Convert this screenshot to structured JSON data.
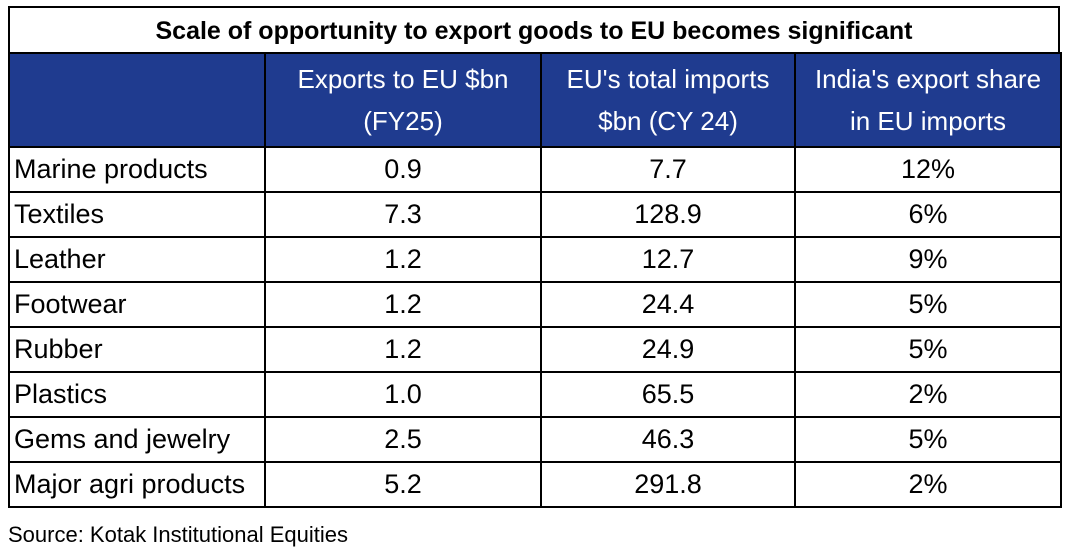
{
  "chart_data": {
    "type": "table",
    "title": "Scale of opportunity to export goods to EU becomes significant",
    "columns": [
      {
        "line1": "",
        "line2": ""
      },
      {
        "line1": "Exports to EU $bn",
        "line2": "(FY25)"
      },
      {
        "line1": "EU's total imports",
        "line2": "$bn (CY 24)"
      },
      {
        "line1": "India's export share",
        "line2": "in EU imports"
      }
    ],
    "rows": [
      {
        "category": "Marine products",
        "exports_fy25": "0.9",
        "eu_imports_cy24": "7.7",
        "india_share": "12%"
      },
      {
        "category": "Textiles",
        "exports_fy25": "7.3",
        "eu_imports_cy24": "128.9",
        "india_share": "6%"
      },
      {
        "category": "Leather",
        "exports_fy25": "1.2",
        "eu_imports_cy24": "12.7",
        "india_share": "9%"
      },
      {
        "category": "Footwear",
        "exports_fy25": "1.2",
        "eu_imports_cy24": "24.4",
        "india_share": "5%"
      },
      {
        "category": "Rubber",
        "exports_fy25": "1.2",
        "eu_imports_cy24": "24.9",
        "india_share": "5%"
      },
      {
        "category": "Plastics",
        "exports_fy25": "1.0",
        "eu_imports_cy24": "65.5",
        "india_share": "2%"
      },
      {
        "category": "Gems and jewelry",
        "exports_fy25": "2.5",
        "eu_imports_cy24": "46.3",
        "india_share": "5%"
      },
      {
        "category": "Major agri products",
        "exports_fy25": "5.2",
        "eu_imports_cy24": "291.8",
        "india_share": "2%"
      }
    ],
    "source": "Source: Kotak Institutional Equities",
    "header_color": "#1f3b8f"
  }
}
